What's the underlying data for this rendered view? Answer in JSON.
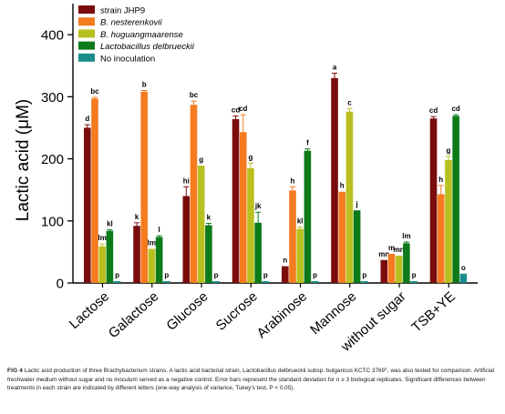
{
  "chart_data": {
    "type": "bar",
    "ylabel": "Lactic acid (μM)",
    "ylim": [
      0,
      450
    ],
    "yticks": [
      0,
      100,
      200,
      300,
      400
    ],
    "categories": [
      "Lactose",
      "Galactose",
      "Glucose",
      "Sucrose",
      "Arabinose",
      "Mannose",
      "without sugar",
      "TSB+YE"
    ],
    "legend_position": "top-left",
    "series": [
      {
        "name": "strain JHP9",
        "color": "#7b0c0c",
        "values": [
          250,
          92,
          140,
          264,
          27,
          330,
          37,
          265
        ],
        "errors": [
          5,
          5,
          15,
          5,
          0,
          8,
          0,
          3
        ],
        "letters": [
          "d",
          "k",
          "hi",
          "cd",
          "n",
          "a",
          "mn",
          "cd"
        ]
      },
      {
        "name": "B. nesterenkovii",
        "color": "#f47b20",
        "values": [
          297,
          308,
          287,
          243,
          149,
          147,
          47,
          143
        ],
        "errors": [
          2,
          2,
          6,
          28,
          6,
          0,
          0,
          14
        ],
        "letters": [
          "bc",
          "b",
          "bc",
          "cd",
          "h",
          "h",
          "m",
          "h"
        ]
      },
      {
        "name": "B. huguangmaarense",
        "color": "#b8c020",
        "values": [
          59,
          55,
          189,
          185,
          87,
          276,
          44,
          198
        ],
        "errors": [
          4,
          0,
          0,
          8,
          3,
          5,
          0,
          6
        ],
        "letters": [
          "lm",
          "lm",
          "g",
          "g",
          "kl",
          "c",
          "mn",
          "g"
        ]
      },
      {
        "name": "Lactobacillus delbrueckii",
        "color": "#0d7a1a",
        "values": [
          84,
          74,
          93,
          97,
          213,
          117,
          64,
          269
        ],
        "errors": [
          2,
          2,
          3,
          17,
          3,
          0,
          2,
          2
        ],
        "letters": [
          "kl",
          "l",
          "k",
          "jk",
          "f",
          "j",
          "lm",
          "cd"
        ]
      },
      {
        "name": "No inoculation",
        "color": "#1b8c8c",
        "values": [
          3,
          3,
          3,
          3,
          3,
          3,
          3,
          15
        ],
        "errors": [
          0,
          0,
          0,
          0,
          0,
          0,
          0,
          0
        ],
        "letters": [
          "p",
          "p",
          "p",
          "p",
          "p",
          "p",
          "p",
          "o"
        ]
      }
    ]
  },
  "caption": {
    "label": "FIG 4",
    "text": "Lactic acid production of three Brachybacterium strains. A lactic acid bacterial strain, Lactobacillus delbrueckii subsp. bulgaricus KCTC 3769ᵀ, was also tested for comparison. Artificial freshwater medium without sugar and no inoculum served as a negative control. Error bars represent the standard deviation for n ≥ 3 biological replicates. Significant differences between treatments in each strain are indicated by different letters (one-way analysis of variance, Tukey's test, P < 0.05)."
  }
}
